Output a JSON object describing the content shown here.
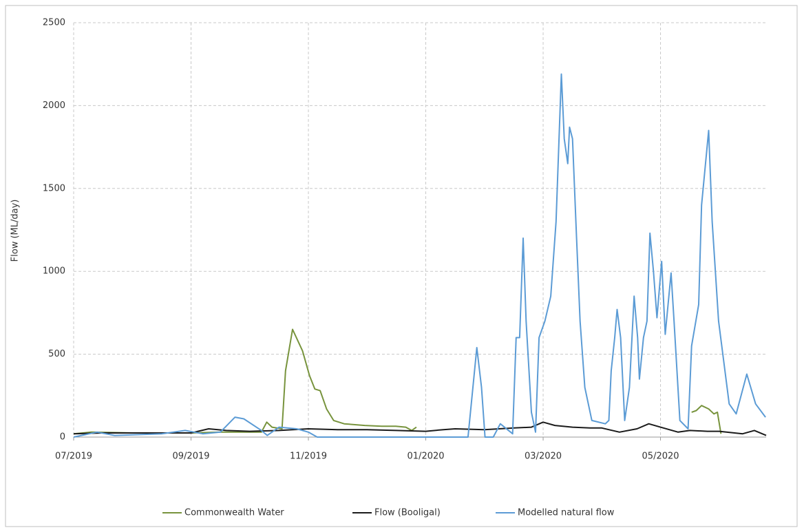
{
  "chart_data": {
    "type": "line",
    "ylabel": "Flow (ML/day)",
    "xlim": [
      0,
      11.8
    ],
    "xticks": [
      {
        "value": 0,
        "label": "07/2019"
      },
      {
        "value": 2,
        "label": "09/2019"
      },
      {
        "value": 4,
        "label": "11/2019"
      },
      {
        "value": 6,
        "label": "01/2020"
      },
      {
        "value": 8,
        "label": "03/2020"
      },
      {
        "value": 10,
        "label": "05/2020"
      }
    ],
    "ylim": [
      0,
      2500
    ],
    "yticks": [
      0,
      500,
      1000,
      1500,
      2000,
      2500
    ],
    "grid": true,
    "legend": "bottom",
    "series": [
      {
        "name": "Commonwealth Water",
        "color": "#77933c",
        "x": [
          0,
          0.3,
          1,
          2,
          2.5,
          3,
          3.2,
          3.29,
          3.38,
          3.55,
          3.61,
          3.73,
          3.9,
          4.02,
          4.11,
          4.2,
          4.31,
          4.43,
          4.61,
          4.96,
          5.25,
          5.49,
          5.66,
          5.76,
          5.84,
          6.0,
          10.53,
          10.61,
          10.7,
          10.82,
          10.91,
          10.97,
          11.03
        ],
        "values": [
          20,
          30,
          25,
          25,
          30,
          30,
          30,
          90,
          60,
          50,
          400,
          650,
          520,
          370,
          290,
          280,
          170,
          100,
          80,
          70,
          65,
          65,
          60,
          40,
          60,
          null,
          150,
          160,
          190,
          170,
          140,
          150,
          20
        ]
      },
      {
        "name": "Flow (Booligal)",
        "color": "#1a1a1a",
        "x": [
          0,
          0.5,
          1,
          1.5,
          2,
          2.3,
          2.6,
          3,
          3.5,
          4,
          4.5,
          5,
          5.5,
          6,
          6.3,
          6.5,
          7,
          7.5,
          7.8,
          8.0,
          8.2,
          8.5,
          8.8,
          9,
          9.3,
          9.6,
          9.8,
          10,
          10.3,
          10.5,
          10.8,
          11,
          11.4,
          11.6,
          11.8
        ],
        "values": [
          20,
          25,
          25,
          25,
          25,
          50,
          40,
          35,
          40,
          50,
          45,
          45,
          40,
          35,
          45,
          50,
          45,
          55,
          60,
          90,
          70,
          60,
          55,
          55,
          30,
          50,
          80,
          60,
          30,
          40,
          35,
          35,
          20,
          40,
          10
        ]
      },
      {
        "name": "Modelled natural flow",
        "color": "#5b9bd5",
        "x": [
          0,
          0.4,
          0.7,
          1.5,
          1.9,
          2.2,
          2.5,
          2.75,
          2.9,
          3.2,
          3.3,
          3.5,
          3.8,
          4.0,
          4.15,
          5.0,
          6.0,
          6.72,
          6.87,
          6.95,
          7.01,
          7.15,
          7.27,
          7.48,
          7.54,
          7.6,
          7.66,
          7.71,
          7.8,
          7.87,
          7.93,
          8.03,
          8.13,
          8.22,
          8.31,
          8.36,
          8.42,
          8.45,
          8.5,
          8.57,
          8.63,
          8.71,
          8.83,
          9.06,
          9.12,
          9.16,
          9.22,
          9.26,
          9.32,
          9.39,
          9.47,
          9.55,
          9.61,
          9.64,
          9.71,
          9.77,
          9.82,
          9.88,
          9.94,
          10.02,
          10.08,
          10.18,
          10.23,
          10.33,
          10.47,
          10.53,
          10.65,
          10.7,
          10.82,
          10.88,
          10.99,
          11.17,
          11.29,
          11.47,
          11.62,
          11.79
        ],
        "values": [
          0,
          30,
          10,
          20,
          40,
          20,
          30,
          120,
          110,
          40,
          10,
          60,
          50,
          30,
          0,
          0,
          0,
          0,
          540,
          300,
          0,
          0,
          80,
          20,
          600,
          600,
          1200,
          700,
          150,
          30,
          600,
          700,
          850,
          1300,
          2190,
          1800,
          1650,
          1870,
          1800,
          1200,
          700,
          300,
          100,
          80,
          100,
          400,
          600,
          770,
          600,
          100,
          300,
          850,
          600,
          350,
          600,
          700,
          1230,
          1000,
          720,
          1060,
          620,
          990,
          700,
          100,
          50,
          550,
          800,
          1400,
          1850,
          1300,
          700,
          200,
          140,
          380,
          200,
          120
        ]
      }
    ]
  }
}
